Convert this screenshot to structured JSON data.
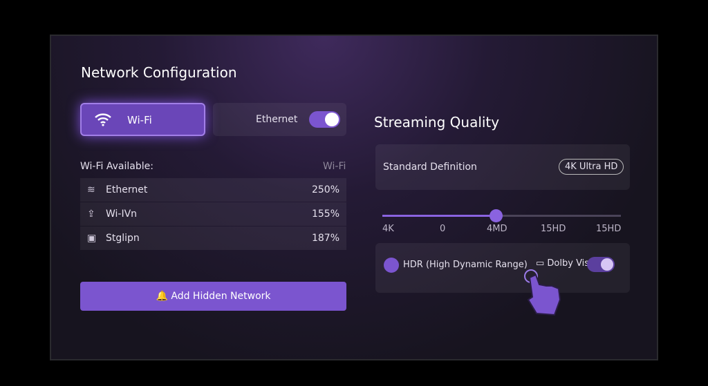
{
  "header": {
    "title": "Network Configuration"
  },
  "tabs": [
    "Wi-Fi",
    "Ethernet"
  ],
  "available": {
    "label": "Wi-Fi Available:",
    "filter": "Wi-Fi"
  },
  "networks": [
    {
      "name": "Ethernet",
      "value": "250%"
    },
    {
      "name": "Wi-IVn",
      "value": "155%"
    },
    {
      "name": "Stglipn",
      "value": "187%"
    }
  ],
  "add_button": "Add Hidden Network",
  "streaming": {
    "title": "Streaming Quality",
    "quality": "Standard Definition",
    "badge": "4K Ultra HD",
    "slider_labels": [
      "4K",
      "0",
      "4MD",
      "15HD",
      "15HD"
    ],
    "hdr": "HDR (High Dynamic Range)",
    "dolby": "Dolby Vision"
  }
}
